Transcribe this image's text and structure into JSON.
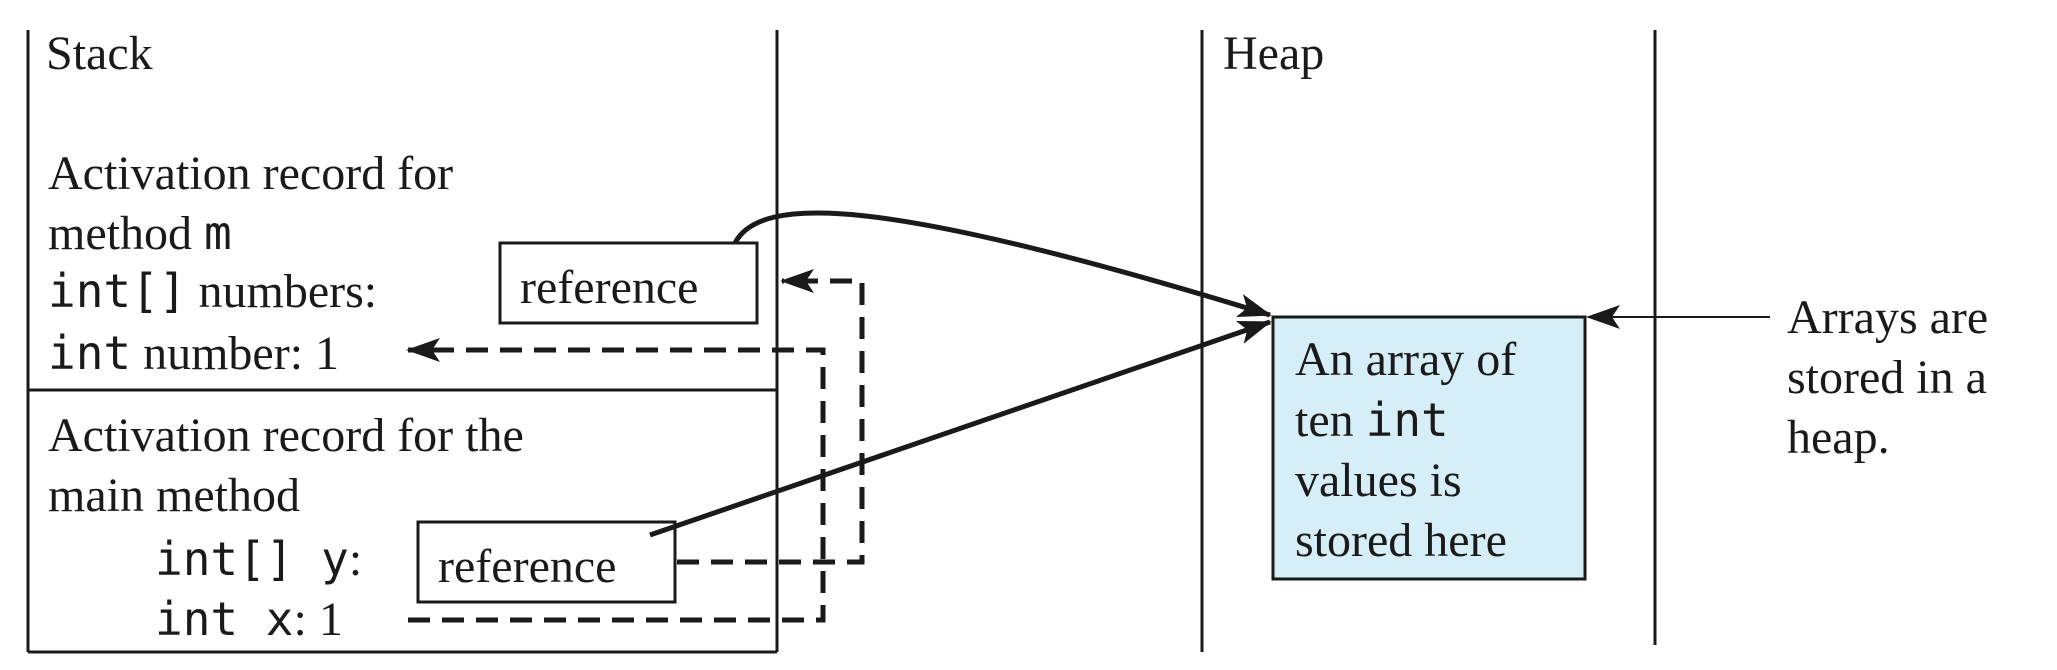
{
  "stack": {
    "title": "Stack",
    "m_record": {
      "line1": "Activation record for",
      "line2_prefix": "method ",
      "line2_code": "m",
      "numbers_code": "int[]",
      "numbers_label": " numbers:",
      "number_code": "int",
      "number_label": " number: 1"
    },
    "main_record": {
      "line1": "Activation record for the",
      "line2": "main method",
      "y_code": "int[] y",
      "y_colon": ":",
      "x_code": "int x",
      "x_rest": ": 1"
    },
    "reference_label_m": "reference",
    "reference_label_main": "reference"
  },
  "heap": {
    "title": "Heap",
    "array_box": {
      "line1": "An array of",
      "line2_prefix": "ten ",
      "line2_code": "int",
      "line3": "values is",
      "line4": "stored here",
      "fill_color": "#d6eef8"
    }
  },
  "note": {
    "line1": "Arrays are",
    "line2": "stored in a",
    "line3": "heap."
  },
  "colors": {
    "ink": "#1a1a1a",
    "array_fill": "#d6eef8"
  }
}
